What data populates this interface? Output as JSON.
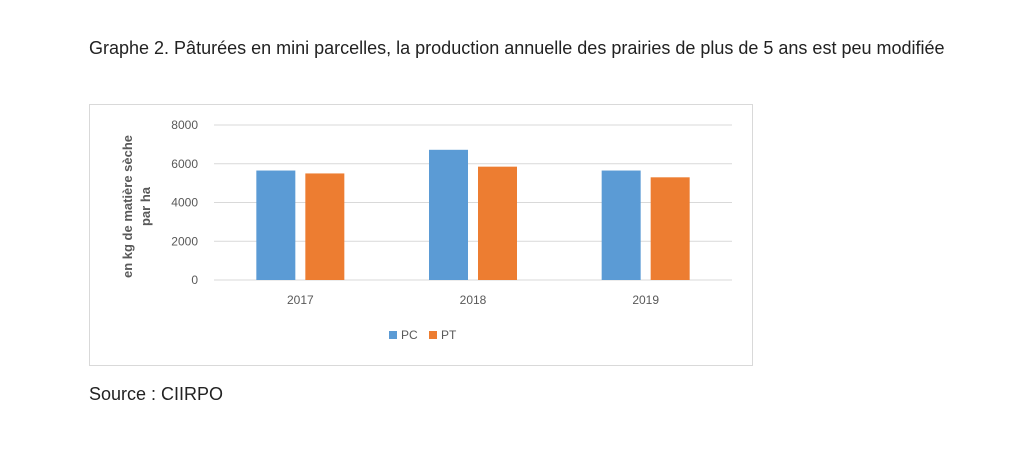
{
  "caption": {
    "title": "Graphe 2. Pâturées en mini parcelles, la production annuelle des prairies de plus de 5 ans est peu modifiée",
    "source": "Source : CIIRPO"
  },
  "chart_data": {
    "type": "bar",
    "title": "",
    "xlabel": "",
    "ylabel_lines": [
      "en kg de matière sèche",
      "par ha"
    ],
    "categories": [
      "2017",
      "2018",
      "2019"
    ],
    "series": [
      {
        "name": "PC",
        "color": "#5b9bd5",
        "values": [
          5650,
          6720,
          5650
        ]
      },
      {
        "name": "PT",
        "color": "#ed7d31",
        "values": [
          5500,
          5850,
          5300
        ]
      }
    ],
    "ylim": [
      0,
      8000
    ],
    "yticks": [
      "0",
      "2000",
      "4000",
      "6000",
      "8000"
    ],
    "grid": true,
    "legend_position": "bottom"
  }
}
